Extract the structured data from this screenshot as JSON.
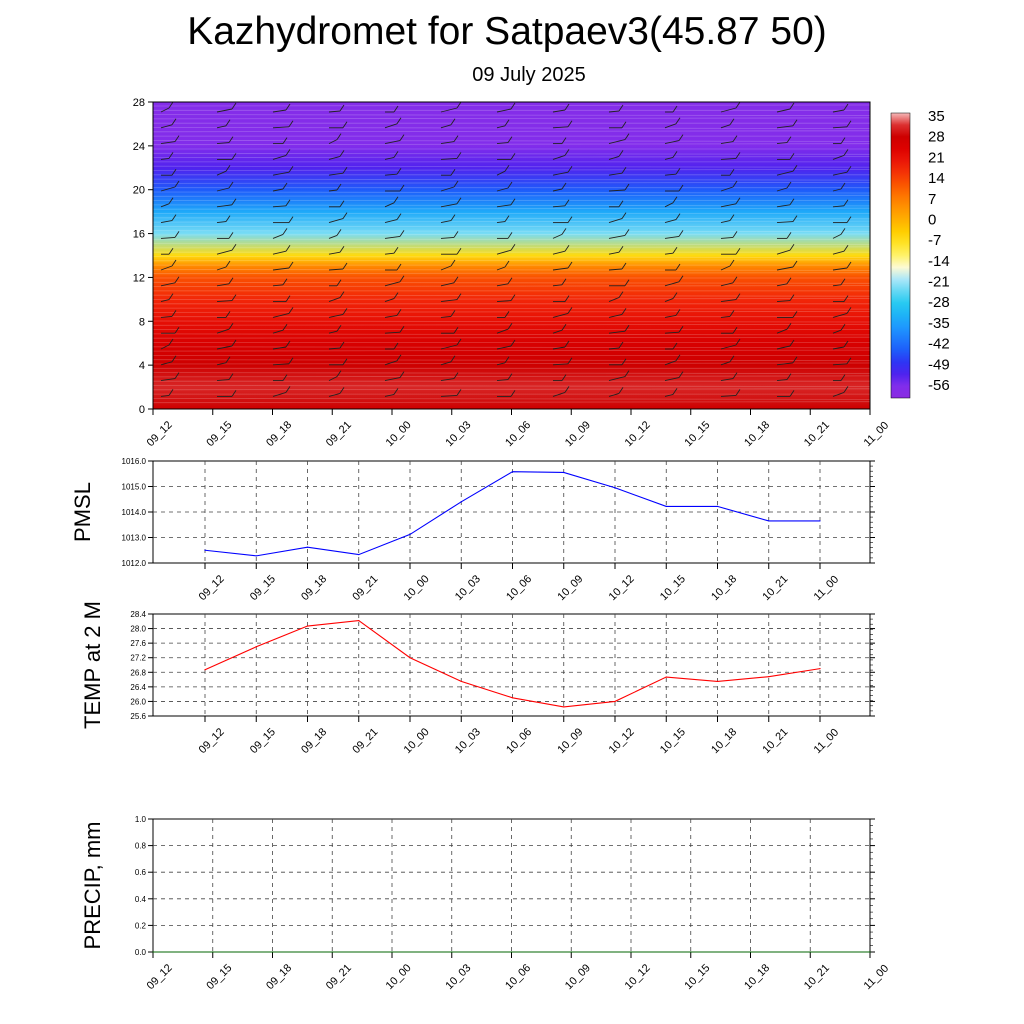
{
  "title": "Kazhydromet for Satpaev3(45.87 50)",
  "subtitle": "09 July 2025",
  "chart_data": [
    {
      "type": "heatmap",
      "x_tick_labels": [
        "09_12",
        "09_15",
        "09_18",
        "09_21",
        "10_00",
        "10_03",
        "10_06",
        "10_09",
        "10_12",
        "10_15",
        "10_18",
        "10_21",
        "11_00"
      ],
      "y_tick_labels": [
        "0",
        "4",
        "8",
        "12",
        "16",
        "20",
        "24",
        "28"
      ],
      "ylim": [
        0,
        28
      ],
      "colorbar_labels": [
        "35",
        "28",
        "21",
        "14",
        "7",
        "0",
        "-7",
        "-14",
        "-21",
        "-28",
        "-35",
        "-42",
        "-49",
        "-56"
      ],
      "colorbar_range": [
        -60,
        38
      ],
      "temperature_profile": {
        "levels": [
          0,
          2,
          4,
          6,
          8,
          10,
          12,
          13,
          14,
          16,
          18,
          20,
          22,
          24,
          26,
          28
        ],
        "values": [
          30,
          33,
          30,
          27,
          23,
          19,
          14,
          7,
          -5,
          -22,
          -33,
          -44,
          -52,
          -56,
          -57,
          -57
        ]
      },
      "wind_barbs": true,
      "grid": false
    },
    {
      "type": "line",
      "ylabel": "PMSL",
      "x": [
        "09_12",
        "09_15",
        "09_18",
        "09_21",
        "10_00",
        "10_03",
        "10_06",
        "10_09",
        "10_12",
        "10_15",
        "10_18",
        "10_21",
        "11_00"
      ],
      "y_tick_labels": [
        "1012.0",
        "1013.0",
        "1014.0",
        "1015.0",
        "1016.0"
      ],
      "ylim": [
        1012.0,
        1016.0
      ],
      "series": [
        {
          "values": [
            1012.5,
            1012.28,
            1012.62,
            1012.33,
            1013.12,
            1014.4,
            1015.58,
            1015.55,
            1014.95,
            1014.22,
            1014.22,
            1013.65,
            1013.65
          ],
          "color": "#0000ff"
        }
      ],
      "grid": true
    },
    {
      "type": "line",
      "ylabel": "TEMP at 2 M",
      "x": [
        "09_12",
        "09_15",
        "09_18",
        "09_21",
        "10_00",
        "10_03",
        "10_06",
        "10_09",
        "10_12",
        "10_15",
        "10_18",
        "10_21",
        "11_00"
      ],
      "y_tick_labels": [
        "25.6",
        "26.0",
        "26.4",
        "26.8",
        "27.2",
        "27.6",
        "28.0",
        "28.4"
      ],
      "ylim": [
        25.6,
        28.4
      ],
      "series": [
        {
          "values": [
            26.87,
            27.5,
            28.07,
            28.22,
            27.2,
            26.55,
            26.1,
            25.85,
            26.0,
            26.67,
            26.55,
            26.68,
            26.9
          ],
          "color": "#ff0000"
        }
      ],
      "grid": true
    },
    {
      "type": "line",
      "ylabel": "PRECIP, mm",
      "x_tick_labels": [
        "09_12",
        "09_15",
        "09_18",
        "09_21",
        "10_00",
        "10_03",
        "10_06",
        "10_09",
        "10_12",
        "10_15",
        "10_18",
        "10_21",
        "11_00"
      ],
      "y_tick_labels": [
        "0.0",
        "0.2",
        "0.4",
        "0.6",
        "0.8",
        "1.0"
      ],
      "ylim": [
        0.0,
        1.0
      ],
      "series": [
        {
          "values": [
            0,
            0,
            0,
            0,
            0,
            0,
            0,
            0,
            0,
            0,
            0,
            0,
            0
          ],
          "color": "#006400"
        }
      ],
      "grid": true
    }
  ]
}
